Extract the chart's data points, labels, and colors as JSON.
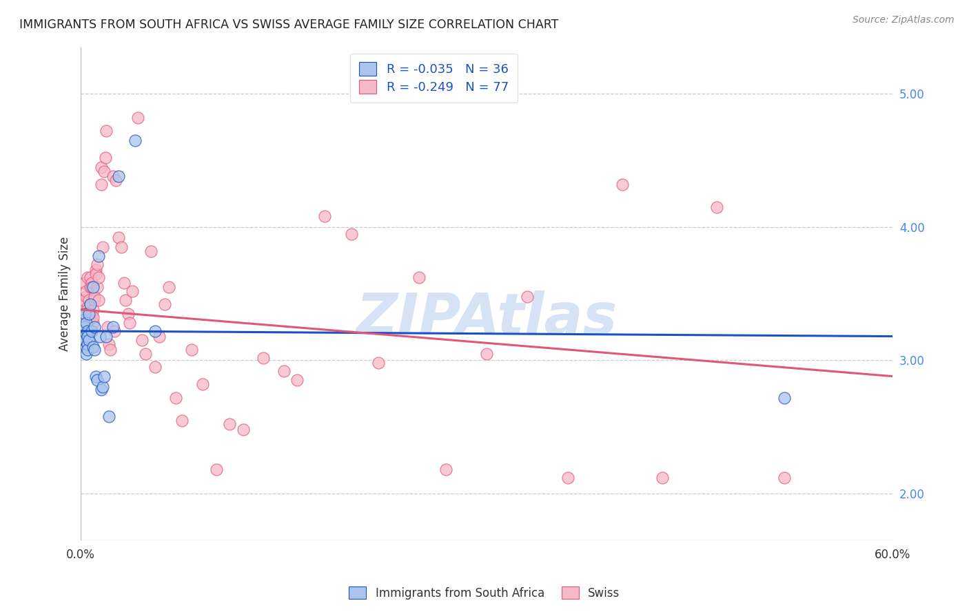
{
  "title": "IMMIGRANTS FROM SOUTH AFRICA VS SWISS AVERAGE FAMILY SIZE CORRELATION CHART",
  "source": "Source: ZipAtlas.com",
  "ylabel": "Average Family Size",
  "xlim": [
    0.0,
    0.6
  ],
  "ylim": [
    1.65,
    5.35
  ],
  "yticks": [
    2.0,
    3.0,
    4.0,
    5.0
  ],
  "xticks": [
    0.0,
    0.1,
    0.2,
    0.3,
    0.4,
    0.5,
    0.6
  ],
  "xtick_labels": [
    "0.0%",
    "",
    "",
    "",
    "",
    "",
    "60.0%"
  ],
  "legend_r1": "-0.035",
  "legend_n1": "36",
  "legend_r2": "-0.249",
  "legend_n2": "77",
  "legend_label1": "Immigrants from South Africa",
  "legend_label2": "Swiss",
  "color_blue": "#aac4ec",
  "color_pink": "#f7b8c8",
  "color_line_blue": "#1a52c4",
  "color_line_pink": "#e05878",
  "color_legend_text": "#1a52c4",
  "watermark_text": "ZIPAtlas",
  "watermark_color": "#c5d8f0",
  "blue_points": [
    [
      0.001,
      3.22
    ],
    [
      0.002,
      3.3
    ],
    [
      0.002,
      3.18
    ],
    [
      0.003,
      3.35
    ],
    [
      0.003,
      3.15
    ],
    [
      0.003,
      3.25
    ],
    [
      0.004,
      3.2
    ],
    [
      0.004,
      3.1
    ],
    [
      0.004,
      3.05
    ],
    [
      0.004,
      3.28
    ],
    [
      0.005,
      3.22
    ],
    [
      0.005,
      3.12
    ],
    [
      0.005,
      3.18
    ],
    [
      0.005,
      3.08
    ],
    [
      0.006,
      3.15
    ],
    [
      0.006,
      3.35
    ],
    [
      0.007,
      3.42
    ],
    [
      0.008,
      3.22
    ],
    [
      0.009,
      3.55
    ],
    [
      0.009,
      3.1
    ],
    [
      0.01,
      3.08
    ],
    [
      0.01,
      3.25
    ],
    [
      0.011,
      2.88
    ],
    [
      0.012,
      2.85
    ],
    [
      0.013,
      3.78
    ],
    [
      0.014,
      3.18
    ],
    [
      0.015,
      2.78
    ],
    [
      0.016,
      2.8
    ],
    [
      0.017,
      2.88
    ],
    [
      0.019,
      3.18
    ],
    [
      0.021,
      2.58
    ],
    [
      0.024,
      3.25
    ],
    [
      0.028,
      4.38
    ],
    [
      0.04,
      4.65
    ],
    [
      0.055,
      3.22
    ],
    [
      0.52,
      2.72
    ]
  ],
  "pink_points": [
    [
      0.002,
      3.45
    ],
    [
      0.003,
      3.58
    ],
    [
      0.003,
      3.35
    ],
    [
      0.004,
      3.48
    ],
    [
      0.004,
      3.52
    ],
    [
      0.005,
      3.62
    ],
    [
      0.005,
      3.4
    ],
    [
      0.005,
      3.38
    ],
    [
      0.006,
      3.3
    ],
    [
      0.006,
      3.45
    ],
    [
      0.006,
      3.22
    ],
    [
      0.007,
      3.55
    ],
    [
      0.007,
      3.42
    ],
    [
      0.007,
      3.62
    ],
    [
      0.008,
      3.58
    ],
    [
      0.008,
      3.55
    ],
    [
      0.008,
      3.35
    ],
    [
      0.009,
      3.28
    ],
    [
      0.009,
      3.38
    ],
    [
      0.009,
      3.32
    ],
    [
      0.01,
      3.45
    ],
    [
      0.01,
      3.48
    ],
    [
      0.011,
      3.68
    ],
    [
      0.011,
      3.65
    ],
    [
      0.012,
      3.72
    ],
    [
      0.012,
      3.55
    ],
    [
      0.013,
      3.45
    ],
    [
      0.013,
      3.62
    ],
    [
      0.015,
      4.32
    ],
    [
      0.015,
      4.45
    ],
    [
      0.016,
      3.85
    ],
    [
      0.017,
      4.42
    ],
    [
      0.018,
      4.52
    ],
    [
      0.019,
      4.72
    ],
    [
      0.02,
      3.25
    ],
    [
      0.021,
      3.12
    ],
    [
      0.022,
      3.08
    ],
    [
      0.024,
      4.38
    ],
    [
      0.025,
      3.22
    ],
    [
      0.026,
      4.35
    ],
    [
      0.028,
      3.92
    ],
    [
      0.03,
      3.85
    ],
    [
      0.032,
      3.58
    ],
    [
      0.033,
      3.45
    ],
    [
      0.035,
      3.35
    ],
    [
      0.036,
      3.28
    ],
    [
      0.038,
      3.52
    ],
    [
      0.042,
      4.82
    ],
    [
      0.045,
      3.15
    ],
    [
      0.048,
      3.05
    ],
    [
      0.052,
      3.82
    ],
    [
      0.055,
      2.95
    ],
    [
      0.058,
      3.18
    ],
    [
      0.062,
      3.42
    ],
    [
      0.065,
      3.55
    ],
    [
      0.07,
      2.72
    ],
    [
      0.075,
      2.55
    ],
    [
      0.082,
      3.08
    ],
    [
      0.09,
      2.82
    ],
    [
      0.1,
      2.18
    ],
    [
      0.11,
      2.52
    ],
    [
      0.12,
      2.48
    ],
    [
      0.135,
      3.02
    ],
    [
      0.15,
      2.92
    ],
    [
      0.16,
      2.85
    ],
    [
      0.18,
      4.08
    ],
    [
      0.2,
      3.95
    ],
    [
      0.22,
      2.98
    ],
    [
      0.25,
      3.62
    ],
    [
      0.27,
      2.18
    ],
    [
      0.3,
      3.05
    ],
    [
      0.33,
      3.48
    ],
    [
      0.36,
      2.12
    ],
    [
      0.4,
      4.32
    ],
    [
      0.43,
      2.12
    ],
    [
      0.47,
      4.15
    ],
    [
      0.52,
      2.12
    ]
  ],
  "blue_line": {
    "x0": 0.0,
    "y0": 3.22,
    "x1": 0.6,
    "y1": 3.18
  },
  "pink_line": {
    "x0": 0.0,
    "y0": 3.38,
    "x1": 0.6,
    "y1": 2.88
  }
}
